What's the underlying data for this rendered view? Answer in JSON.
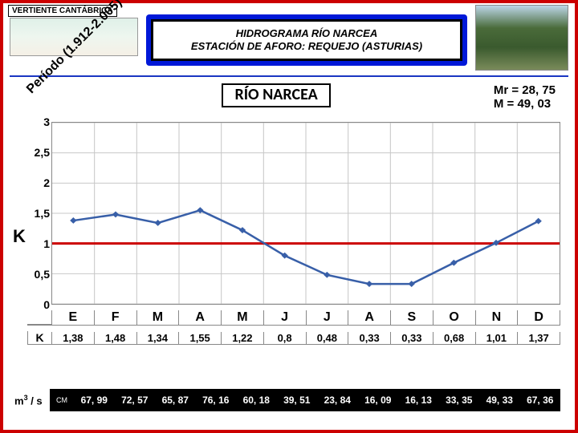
{
  "top_label": "VERTIENTE CANTÁBRICA",
  "title": {
    "line1": "HIDROGRAMA  RÍO  NARCEA",
    "line2": "ESTACIÓN DE AFORO: REQUEJO (ASTURIAS)"
  },
  "period_label": "Período (1.912-2.005)",
  "chart": {
    "title": "RÍO NARCEA",
    "y_label": "K",
    "y_ticks": [
      0,
      0.5,
      1,
      1.5,
      2,
      2.5,
      3
    ],
    "ylim": [
      0,
      3
    ],
    "months": [
      "E",
      "F",
      "M",
      "A",
      "M",
      "J",
      "J",
      "A",
      "S",
      "O",
      "N",
      "D"
    ],
    "k_values": [
      1.38,
      1.48,
      1.34,
      1.55,
      1.22,
      0.8,
      0.48,
      0.33,
      0.33,
      0.68,
      1.01,
      1.37
    ],
    "k_labels": [
      "1,38",
      "1,48",
      "1,34",
      "1,55",
      "1,22",
      "0,8",
      "0,48",
      "0,33",
      "0,33",
      "0,68",
      "1,01",
      "1,37"
    ],
    "k_head": "K",
    "ref_value": 1,
    "series_color": "#385fa8",
    "ref_color": "#c00000",
    "grid_color": "#c8c8c8",
    "background_color": "#ffffff",
    "marker_size": 4,
    "line_width": 2.5
  },
  "stats": {
    "mr": "Mr = 28, 75",
    "m": "M = 49, 03"
  },
  "m3": {
    "label_html": "m³ / s",
    "cm": "CM",
    "values": [
      "67, 99",
      "72, 57",
      "65, 87",
      "76, 16",
      "60, 18",
      "39, 51",
      "23, 84",
      "16, 09",
      "16, 13",
      "33, 35",
      "49, 33",
      "67, 36"
    ]
  },
  "accent": {
    "slide_border": "#c00000",
    "title_bg": "#0018d8"
  }
}
